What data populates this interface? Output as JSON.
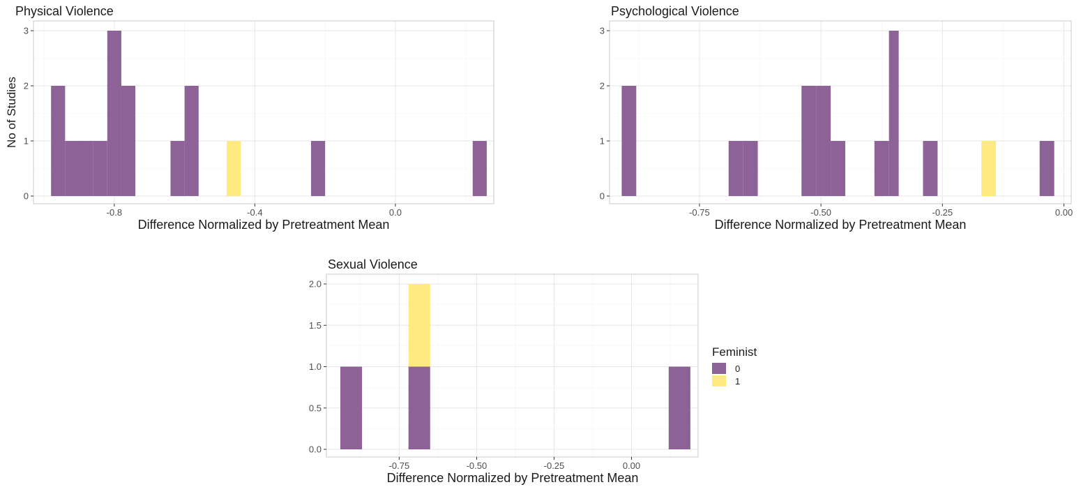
{
  "colors": {
    "feminist_0": "#8d6296",
    "feminist_1": "#fdeb80"
  },
  "legend": {
    "title": "Feminist",
    "items": [
      "0",
      "1"
    ],
    "placement": "right"
  },
  "chart_data": [
    {
      "type": "bar",
      "title": "Physical Violence",
      "xlabel": "Difference Normalized by Pretreatment Mean",
      "ylabel": "No of Studies",
      "xlim": [
        -1.03,
        0.28
      ],
      "ylim": [
        0,
        3
      ],
      "grid": true,
      "xticks": [
        -0.8,
        -0.4,
        0.0
      ],
      "xtick_labels": [
        "-0.8",
        "-0.4",
        "0.0"
      ],
      "yticks": [
        0,
        1,
        2,
        3
      ],
      "ytick_labels": [
        "0",
        "1",
        "2",
        "3"
      ],
      "bins": [
        {
          "x0": -0.98,
          "x1": -0.94,
          "counts": [
            2,
            0
          ]
        },
        {
          "x0": -0.94,
          "x1": -0.9,
          "counts": [
            1,
            0
          ]
        },
        {
          "x0": -0.9,
          "x1": -0.86,
          "counts": [
            1,
            0
          ]
        },
        {
          "x0": -0.86,
          "x1": -0.82,
          "counts": [
            1,
            0
          ]
        },
        {
          "x0": -0.82,
          "x1": -0.78,
          "counts": [
            3,
            0
          ]
        },
        {
          "x0": -0.78,
          "x1": -0.74,
          "counts": [
            2,
            0
          ]
        },
        {
          "x0": -0.64,
          "x1": -0.6,
          "counts": [
            1,
            0
          ]
        },
        {
          "x0": -0.6,
          "x1": -0.56,
          "counts": [
            2,
            0
          ]
        },
        {
          "x0": -0.48,
          "x1": -0.44,
          "counts": [
            0,
            1
          ]
        },
        {
          "x0": -0.24,
          "x1": -0.2,
          "counts": [
            1,
            0
          ]
        },
        {
          "x0": 0.22,
          "x1": 0.26,
          "counts": [
            1,
            0
          ]
        }
      ]
    },
    {
      "type": "bar",
      "title": "Psychological Violence",
      "xlabel": "Difference Normalized by Pretreatment Mean",
      "ylabel": "",
      "xlim": [
        -0.935,
        0.015
      ],
      "ylim": [
        0,
        3
      ],
      "grid": true,
      "xticks": [
        -0.75,
        -0.5,
        -0.25,
        0.0
      ],
      "xtick_labels": [
        "-0.75",
        "-0.50",
        "-0.25",
        "0.00"
      ],
      "yticks": [
        0,
        1,
        2,
        3
      ],
      "ytick_labels": [
        "0",
        "1",
        "2",
        "3"
      ],
      "bins": [
        {
          "x0": -0.91,
          "x1": -0.88,
          "counts": [
            2,
            0
          ]
        },
        {
          "x0": -0.69,
          "x1": -0.66,
          "counts": [
            1,
            0
          ]
        },
        {
          "x0": -0.66,
          "x1": -0.63,
          "counts": [
            1,
            0
          ]
        },
        {
          "x0": -0.54,
          "x1": -0.51,
          "counts": [
            2,
            0
          ]
        },
        {
          "x0": -0.51,
          "x1": -0.48,
          "counts": [
            2,
            0
          ]
        },
        {
          "x0": -0.48,
          "x1": -0.45,
          "counts": [
            1,
            0
          ]
        },
        {
          "x0": -0.39,
          "x1": -0.36,
          "counts": [
            1,
            0
          ]
        },
        {
          "x0": -0.36,
          "x1": -0.34,
          "counts": [
            3,
            0
          ]
        },
        {
          "x0": -0.29,
          "x1": -0.26,
          "counts": [
            1,
            0
          ]
        },
        {
          "x0": -0.17,
          "x1": -0.14,
          "counts": [
            0,
            1
          ]
        },
        {
          "x0": -0.05,
          "x1": -0.02,
          "counts": [
            1,
            0
          ]
        }
      ]
    },
    {
      "type": "bar",
      "title": "Sexual Violence",
      "xlabel": "Difference Normalized by Pretreatment Mean",
      "ylabel": "",
      "xlim": [
        -0.985,
        0.215
      ],
      "ylim": [
        0,
        2
      ],
      "grid": true,
      "xticks": [
        -0.75,
        -0.5,
        -0.25,
        0.0
      ],
      "xtick_labels": [
        "-0.75",
        "-0.50",
        "-0.25",
        "0.00"
      ],
      "yticks": [
        0,
        0.5,
        1,
        1.5,
        2
      ],
      "ytick_labels": [
        "0.0",
        "0.5",
        "1.0",
        "1.5",
        "2.0"
      ],
      "bins": [
        {
          "x0": -0.94,
          "x1": -0.87,
          "counts": [
            1,
            0
          ]
        },
        {
          "x0": -0.72,
          "x1": -0.65,
          "counts": [
            1,
            1
          ]
        },
        {
          "x0": 0.12,
          "x1": 0.19,
          "counts": [
            1,
            0
          ]
        }
      ]
    }
  ]
}
